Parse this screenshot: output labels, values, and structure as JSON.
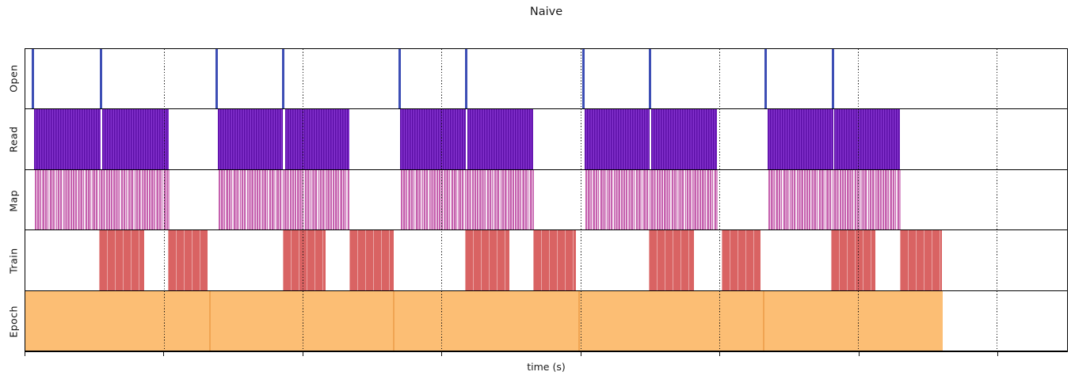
{
  "title": "Naive",
  "x_axis_label": "time (s)",
  "row_labels": [
    "Open",
    "Read",
    "Map",
    "Train",
    "Epoch"
  ],
  "colors": {
    "open": "#3d4eb5",
    "read_dark": "#5b0ea6",
    "read_light": "#8432ce",
    "map_base": "#c561ae",
    "map_light": "#f2d8ec",
    "train": "#d96363",
    "epoch": "#fcbe74",
    "epoch_edge": "#f0a452",
    "grid": "#111111"
  },
  "chart_data": {
    "type": "timeline",
    "title": "Naive",
    "xlabel": "time (s)",
    "x_unit": "percent of visible time axis (axis shows ticks but no numeric labels)",
    "x_ticks_pct": [
      0,
      13.29,
      26.65,
      39.94,
      53.3,
      66.59,
      79.95,
      93.24
    ],
    "gridlines_pct": [
      13.29,
      26.65,
      39.94,
      53.3,
      66.59,
      79.95,
      93.24
    ],
    "grid": "dotted vertical gridlines at tick positions, drawn over data",
    "legend": "none",
    "rows": [
      {
        "label": "Open",
        "style": "instant-event",
        "events_pct": [
          0.76,
          7.29,
          18.34,
          24.75,
          35.91,
          42.29,
          53.57,
          59.98,
          71.07,
          77.53
        ]
      },
      {
        "label": "Read",
        "style": "dense-striped-interval",
        "intervals_pct": [
          [
            0.84,
            7.21
          ],
          [
            7.37,
            13.74
          ],
          [
            18.45,
            24.68
          ],
          [
            24.91,
            31.13
          ],
          [
            35.99,
            42.29
          ],
          [
            42.44,
            48.75
          ],
          [
            53.68,
            59.91
          ],
          [
            60.06,
            66.36
          ],
          [
            71.22,
            77.53
          ],
          [
            77.68,
            83.98
          ]
        ]
      },
      {
        "label": "Map",
        "style": "sparse-striped-interval",
        "intervals_pct": [
          [
            0.84,
            13.82
          ],
          [
            18.45,
            31.13
          ],
          [
            35.99,
            48.82
          ],
          [
            53.68,
            66.44
          ],
          [
            71.22,
            84.05
          ]
        ]
      },
      {
        "label": "Train",
        "style": "block-interval",
        "intervals_pct": [
          [
            7.06,
            11.39
          ],
          [
            13.67,
            17.46
          ],
          [
            24.68,
            28.85
          ],
          [
            31.13,
            35.38
          ],
          [
            42.22,
            46.47
          ],
          [
            48.75,
            52.85
          ],
          [
            59.83,
            64.16
          ],
          [
            66.82,
            70.54
          ],
          [
            77.37,
            81.63
          ],
          [
            83.98,
            88.0
          ]
        ]
      },
      {
        "label": "Epoch",
        "style": "solid-interval",
        "intervals_pct": [
          [
            0.0,
            17.62
          ],
          [
            17.62,
            35.31
          ],
          [
            35.31,
            53.07
          ],
          [
            53.07,
            70.77
          ],
          [
            70.77,
            88.08
          ]
        ]
      }
    ]
  }
}
